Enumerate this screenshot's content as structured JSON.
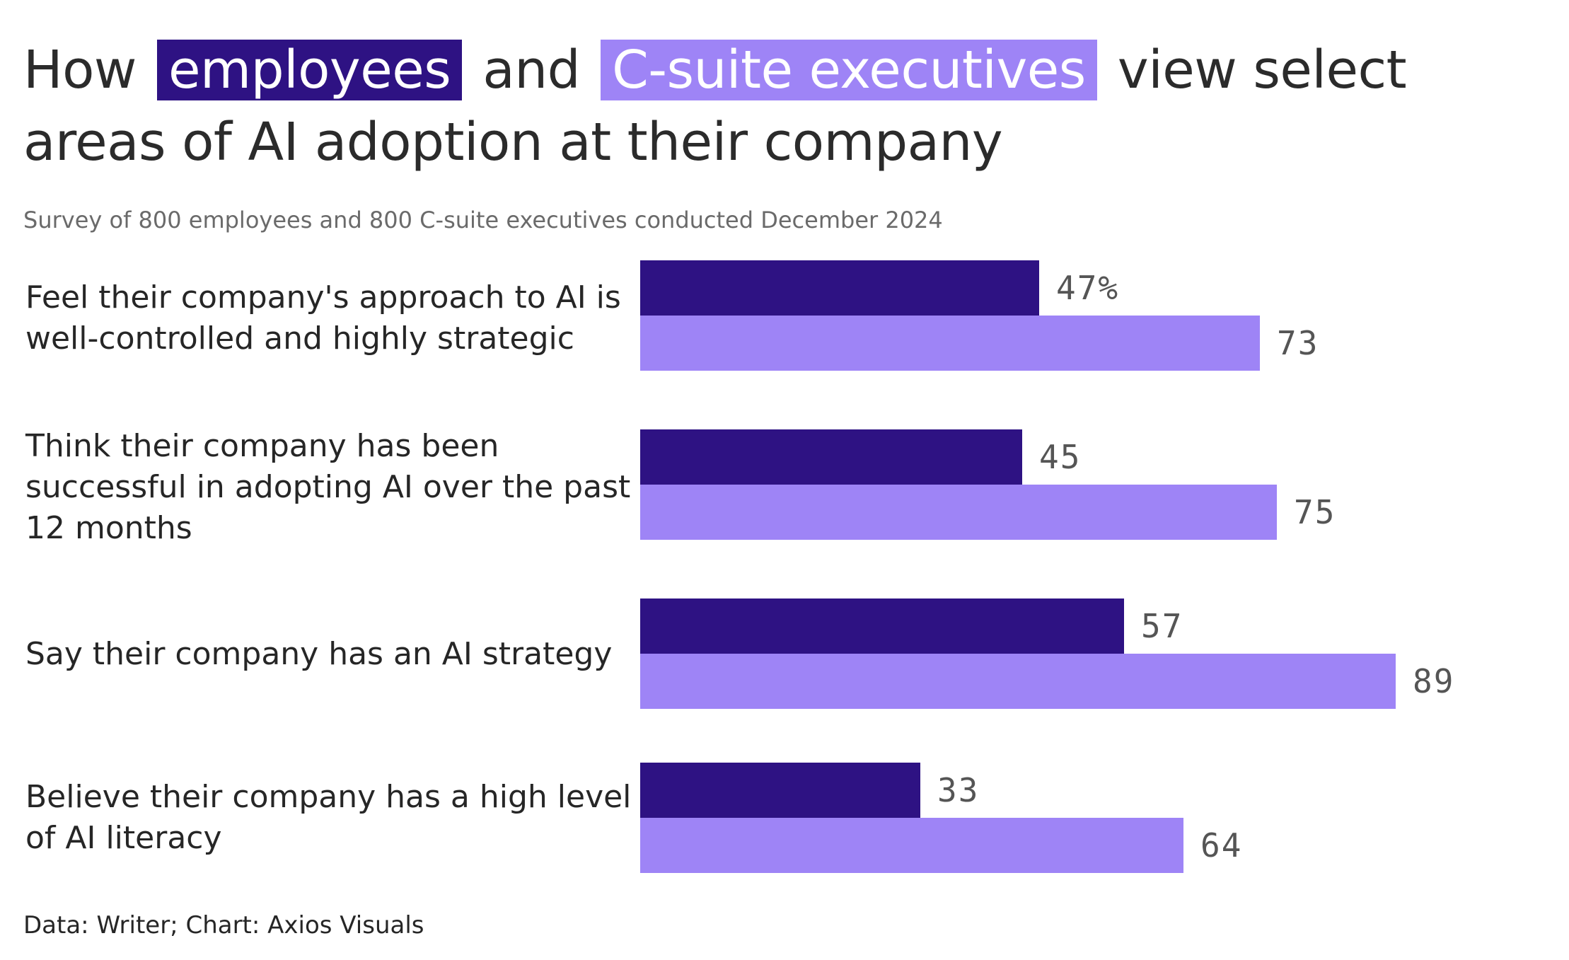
{
  "title": {
    "prefix": "How",
    "employees": "employees",
    "connector": "and",
    "csuite": "C-suite executives",
    "suffix": "view select areas of AI adoption at their company"
  },
  "subtitle": "Survey of 800 employees and 800 C-suite executives conducted December 2024",
  "source": "Data: Writer; Chart: Axios Visuals",
  "colors": {
    "employees": "#2e1283",
    "csuite": "#9e84f6"
  },
  "chart_data": {
    "type": "bar",
    "orientation": "horizontal",
    "categories": [
      "Feel their company's approach to AI is well-controlled and highly strategic",
      "Think their company has been successful in adopting AI over the past 12 months",
      "Say their company has an AI strategy",
      "Believe their company has a high level of AI literacy"
    ],
    "series": [
      {
        "name": "employees",
        "values": [
          47,
          45,
          57,
          33
        ],
        "labels": [
          "47%",
          "45",
          "57",
          "33"
        ]
      },
      {
        "name": "C-suite executives",
        "values": [
          73,
          75,
          89,
          64
        ],
        "labels": [
          "73",
          "75",
          "89",
          "64"
        ]
      }
    ],
    "unit": "%",
    "xlim": [
      0,
      100
    ],
    "grid": false
  }
}
